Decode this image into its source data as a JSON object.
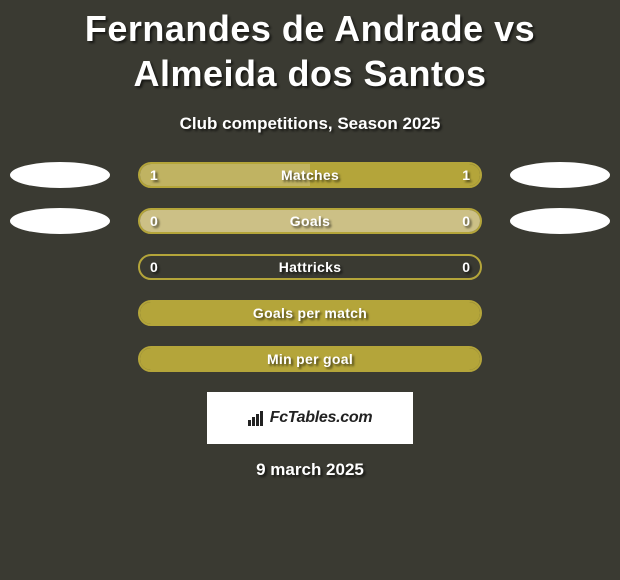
{
  "title": "Fernandes de Andrade vs Almeida dos Santos",
  "subtitle": "Club competitions, Season 2025",
  "date": "9 march 2025",
  "logo_text": "FcTables.com",
  "colors": {
    "background": "#3a3a32",
    "bar_border": "#b4a53a",
    "bar_fill_lightA": "#c0b362",
    "bar_fill_lightB": "#ccc086",
    "bar_fill_solid": "#b4a53a",
    "badge_white": "#ffffff",
    "text": "#ffffff"
  },
  "rows": [
    {
      "label": "Matches",
      "left_value": "1",
      "right_value": "1",
      "left_fill_pct": 50,
      "right_fill_pct": 50,
      "left_fill_color": "#c0b362",
      "right_fill_color": "#b4a53a",
      "border_color": "#b4a53a",
      "badge_left": true,
      "badge_right": true,
      "badge_left_color": "#ffffff",
      "badge_right_color": "#ffffff"
    },
    {
      "label": "Goals",
      "left_value": "0",
      "right_value": "0",
      "left_fill_pct": 50,
      "right_fill_pct": 50,
      "left_fill_color": "#ccc086",
      "right_fill_color": "#ccc086",
      "border_color": "#b4a53a",
      "badge_left": true,
      "badge_right": true,
      "badge_left_color": "#ffffff",
      "badge_right_color": "#ffffff"
    },
    {
      "label": "Hattricks",
      "left_value": "0",
      "right_value": "0",
      "left_fill_pct": 0,
      "right_fill_pct": 0,
      "left_fill_color": "#b4a53a",
      "right_fill_color": "#b4a53a",
      "border_color": "#b4a53a",
      "badge_left": false,
      "badge_right": false
    },
    {
      "label": "Goals per match",
      "left_value": "",
      "right_value": "",
      "left_fill_pct": 100,
      "right_fill_pct": 0,
      "left_fill_color": "#b4a53a",
      "right_fill_color": "#b4a53a",
      "border_color": "#b4a53a",
      "badge_left": false,
      "badge_right": false
    },
    {
      "label": "Min per goal",
      "left_value": "",
      "right_value": "",
      "left_fill_pct": 100,
      "right_fill_pct": 0,
      "left_fill_color": "#b4a53a",
      "right_fill_color": "#b4a53a",
      "border_color": "#b4a53a",
      "badge_left": false,
      "badge_right": false
    }
  ]
}
